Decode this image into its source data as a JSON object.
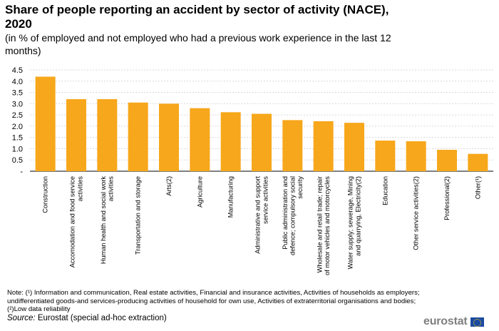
{
  "title": "Share of people reporting an accident by sector of activity (NACE), 2020",
  "subtitle": "(in % of employed and not employed who had a previous work experience in the last 12 months)",
  "note": "Note: (¹) Information and communication, Real estate activities, Financial and insurance activities, Activities of households as employers; undifferentiated goods-and services-producing activities of household for own use, Activities of extraterritorial organisations and bodies; (²)Low data reliability",
  "source_label": "Source:",
  "source_text": " Eurostat (special ad-hoc extraction)",
  "logo_text": "eurostat",
  "colors": {
    "bar": "#f7a71b",
    "grid": "#d9d9d9",
    "axis": "#000000"
  },
  "chart_data": {
    "type": "bar",
    "categories": [
      [
        "Construction"
      ],
      [
        "Accomodation and food service",
        "activities"
      ],
      [
        "Human health and social work",
        "activities"
      ],
      [
        "Transportation and storage"
      ],
      [
        "Arts(2)"
      ],
      [
        "Agriculture"
      ],
      [
        "Manufacturing"
      ],
      [
        "Administrative and support",
        "service activities"
      ],
      [
        "Public administration and",
        "defence; compulsory social",
        "security"
      ],
      [
        "Wholesale and retail trade; repair",
        "of motor vehicles and motorcycles"
      ],
      [
        "Water supply; sewerage, Mining",
        "and quarrying, Electricity(2)"
      ],
      [
        "Education"
      ],
      [
        "Other service activities(2)"
      ],
      [
        "Professional(2)"
      ],
      [
        "Other(¹)"
      ]
    ],
    "values": [
      4.2,
      3.2,
      3.2,
      3.05,
      3.0,
      2.8,
      2.62,
      2.55,
      2.27,
      2.22,
      2.15,
      1.36,
      1.33,
      0.95,
      0.77
    ],
    "yticks": [
      "-",
      "0.5",
      "1.0",
      "1.5",
      "2.0",
      "2.5",
      "3.0",
      "3.5",
      "4.0",
      "4.5"
    ],
    "ylim": [
      0,
      4.5
    ],
    "grid": true
  }
}
